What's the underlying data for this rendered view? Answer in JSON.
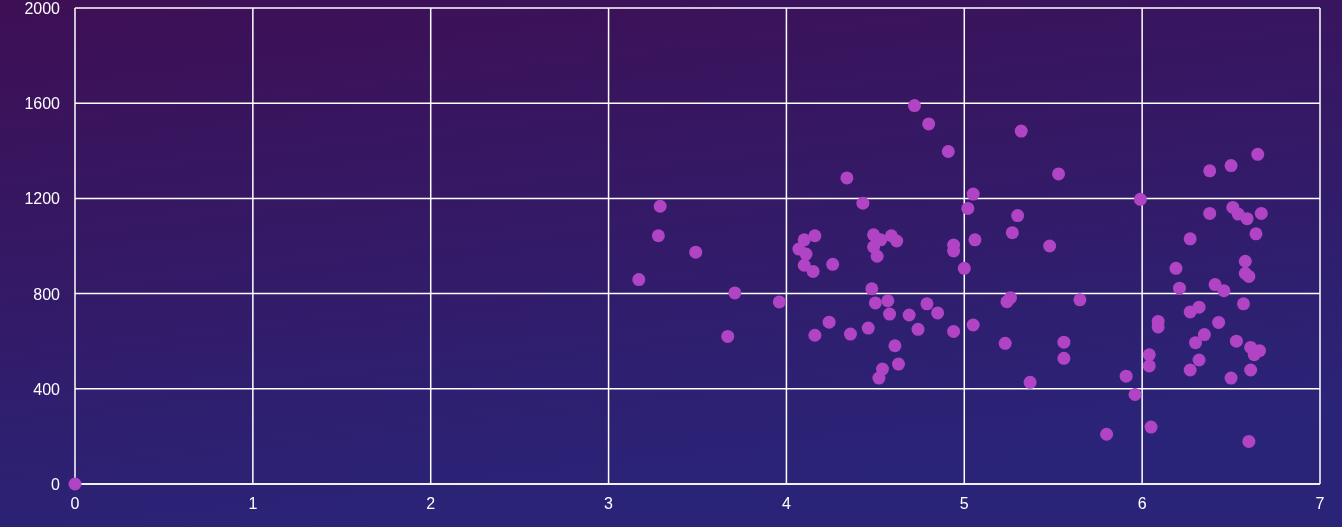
{
  "chart_data": {
    "type": "scatter",
    "marker": "circle",
    "grid": true,
    "xlim": [
      0,
      7
    ],
    "xticks": [
      0,
      1,
      2,
      3,
      4,
      5,
      6,
      7
    ],
    "ylim": [
      0,
      2000
    ],
    "yticks": [
      0,
      400,
      800,
      1200,
      1600,
      2000
    ],
    "series": [
      {
        "color": "#b044c4",
        "x": [
          0,
          3.17,
          3.28,
          3.29,
          3.49,
          3.71,
          3.67,
          3.96,
          4.72,
          4.8,
          4.91,
          4.34,
          4.43,
          4.16,
          4.1,
          4.07,
          4.11,
          4.1,
          4.15,
          4.26,
          4.49,
          4.53,
          4.59,
          4.62,
          4.49,
          4.51,
          4.48,
          4.5,
          4.57,
          4.58,
          4.69,
          4.79,
          4.85,
          4.74,
          4.94,
          4.94,
          4.94,
          4.46,
          4.36,
          4.24,
          4.16,
          4.61,
          4.63,
          4.54,
          4.52,
          5.32,
          5.53,
          5.05,
          5.02,
          5.3,
          5.27,
          5.06,
          5.48,
          5.0,
          5.26,
          5.24,
          5.65,
          5.05,
          5.23,
          5.56,
          5.56,
          5.37,
          5.99,
          5.91,
          5.96,
          5.8,
          6.05,
          6.04,
          6.04,
          6.09,
          6.09,
          6.19,
          6.21,
          6.27,
          6.38,
          6.38,
          6.5,
          6.65,
          6.51,
          6.54,
          6.59,
          6.67,
          6.64,
          6.58,
          6.58,
          6.6,
          6.41,
          6.46,
          6.57,
          6.27,
          6.32,
          6.43,
          6.35,
          6.3,
          6.53,
          6.61,
          6.66,
          6.63,
          6.32,
          6.27,
          6.61,
          6.5,
          6.6
        ],
        "values": [
          0,
          859,
          1043,
          1167,
          974,
          803,
          620,
          765,
          1590,
          1513,
          1397,
          1286,
          1180,
          1043,
          1026,
          987,
          966,
          919,
          893,
          923,
          1047,
          1026,
          1043,
          1021,
          996,
          957,
          820,
          761,
          770,
          714,
          710,
          757,
          719,
          650,
          1004,
          979,
          641,
          655,
          630,
          680,
          625,
          581,
          504,
          483,
          445,
          1483,
          1303,
          1218,
          1158,
          1128,
          1056,
          1026,
          1000,
          906,
          783,
          766,
          774,
          668,
          591,
          596,
          528,
          427,
          1196,
          453,
          376,
          209,
          239,
          543,
          496,
          683,
          660,
          906,
          823,
          1030,
          1137,
          1316,
          1338,
          1385,
          1162,
          1134,
          1115,
          1137,
          1051,
          936,
          885,
          872,
          838,
          812,
          757,
          723,
          743,
          679,
          628,
          594,
          600,
          574,
          560,
          543,
          521,
          479,
          479,
          445,
          179
        ]
      }
    ]
  }
}
